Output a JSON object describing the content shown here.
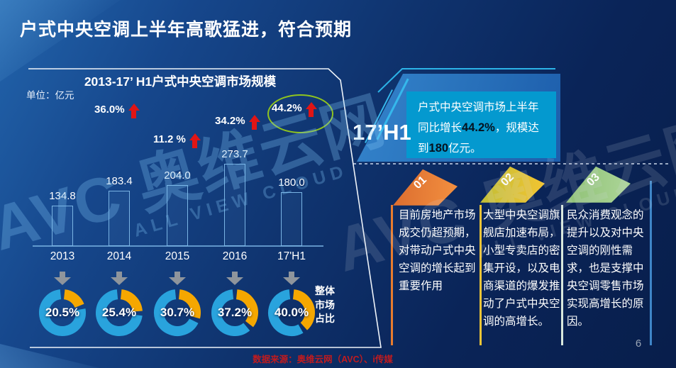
{
  "slide": {
    "title": "户式中央空调上半年高歌猛进，符合预期",
    "page_number": "6",
    "source_note": "数据来源：奥维云网（AVC）、i传媒",
    "watermark": {
      "logo_text": "AVC 奥维云网",
      "sub_text": "ALL VIEW CLOUD"
    }
  },
  "chart_panel": {
    "title": "2013-17’ H1户式中央空调市场规模",
    "unit_label": "单位：亿元",
    "share_caption": [
      "整体",
      "市场",
      "占比"
    ]
  },
  "chart_data": {
    "type": "bar",
    "title": "2013-17’ H1户式中央空调市场规模",
    "unit": "亿元",
    "categories": [
      "2013",
      "2014",
      "2015",
      "2016",
      "17'H1"
    ],
    "series": [
      {
        "name": "户式中央空调市场规模",
        "type": "bar",
        "values": [
          134.8,
          183.4,
          204.0,
          273.7,
          180.0
        ]
      },
      {
        "name": "同比增长",
        "type": "annotation",
        "values": [
          "36.0%",
          "11.2 %",
          "34.2%",
          "44.2%"
        ],
        "highlighted_value": "44.2%"
      },
      {
        "name": "整体市场占比",
        "type": "donut",
        "values": [
          20.5,
          25.4,
          30.7,
          37.2,
          40.0
        ],
        "labels": [
          "20.5%",
          "25.4%",
          "30.7%",
          "37.2%",
          "40.0%"
        ]
      }
    ],
    "ylim": [
      0,
      300
    ],
    "grid": false,
    "legend": false
  },
  "highlight_callout": {
    "period_label": "17’H1",
    "line_prefix": "户式中央空调市场上半年同比增长",
    "growth_value": "44.2%",
    "middle": "，规模达到",
    "scale_value": "180",
    "suffix": "亿元。"
  },
  "insights": [
    {
      "number": "01",
      "text": "目前房地产市场成交仍超预期，对带动户式中央空调的增长起到重要作用",
      "ribbon_colors": [
        "#d96a2e",
        "#f49140"
      ],
      "line_color": "#e87c2e"
    },
    {
      "number": "02",
      "text": "大型中央空调旗舰店加速布局，小型专卖店的密集开设，以及电商渠道的爆发推动了户式中央空调的高增长。",
      "ribbon_colors": [
        "#bcbd37",
        "#f5c431"
      ],
      "line_color": "#edc437"
    },
    {
      "number": "03",
      "text": "民众消费观念的提升以及对中央空调的刚性需求，也是支撑中央空调零售市场实现高增长的原因。",
      "ribbon_colors": [
        "#8cbf72",
        "#aed69a"
      ],
      "line_color": "#d9e8dd"
    }
  ],
  "colors": {
    "bar_stroke": "#7ab4e4",
    "donut_primary": "#29a3dd",
    "donut_secondary": "#f5a700",
    "growth_arrow": "#e01515",
    "highlight_ring": "#8fc31f",
    "callout_box": "#0499cf",
    "accent_line": "#2cb4e8",
    "source_text": "#c11b1e"
  }
}
